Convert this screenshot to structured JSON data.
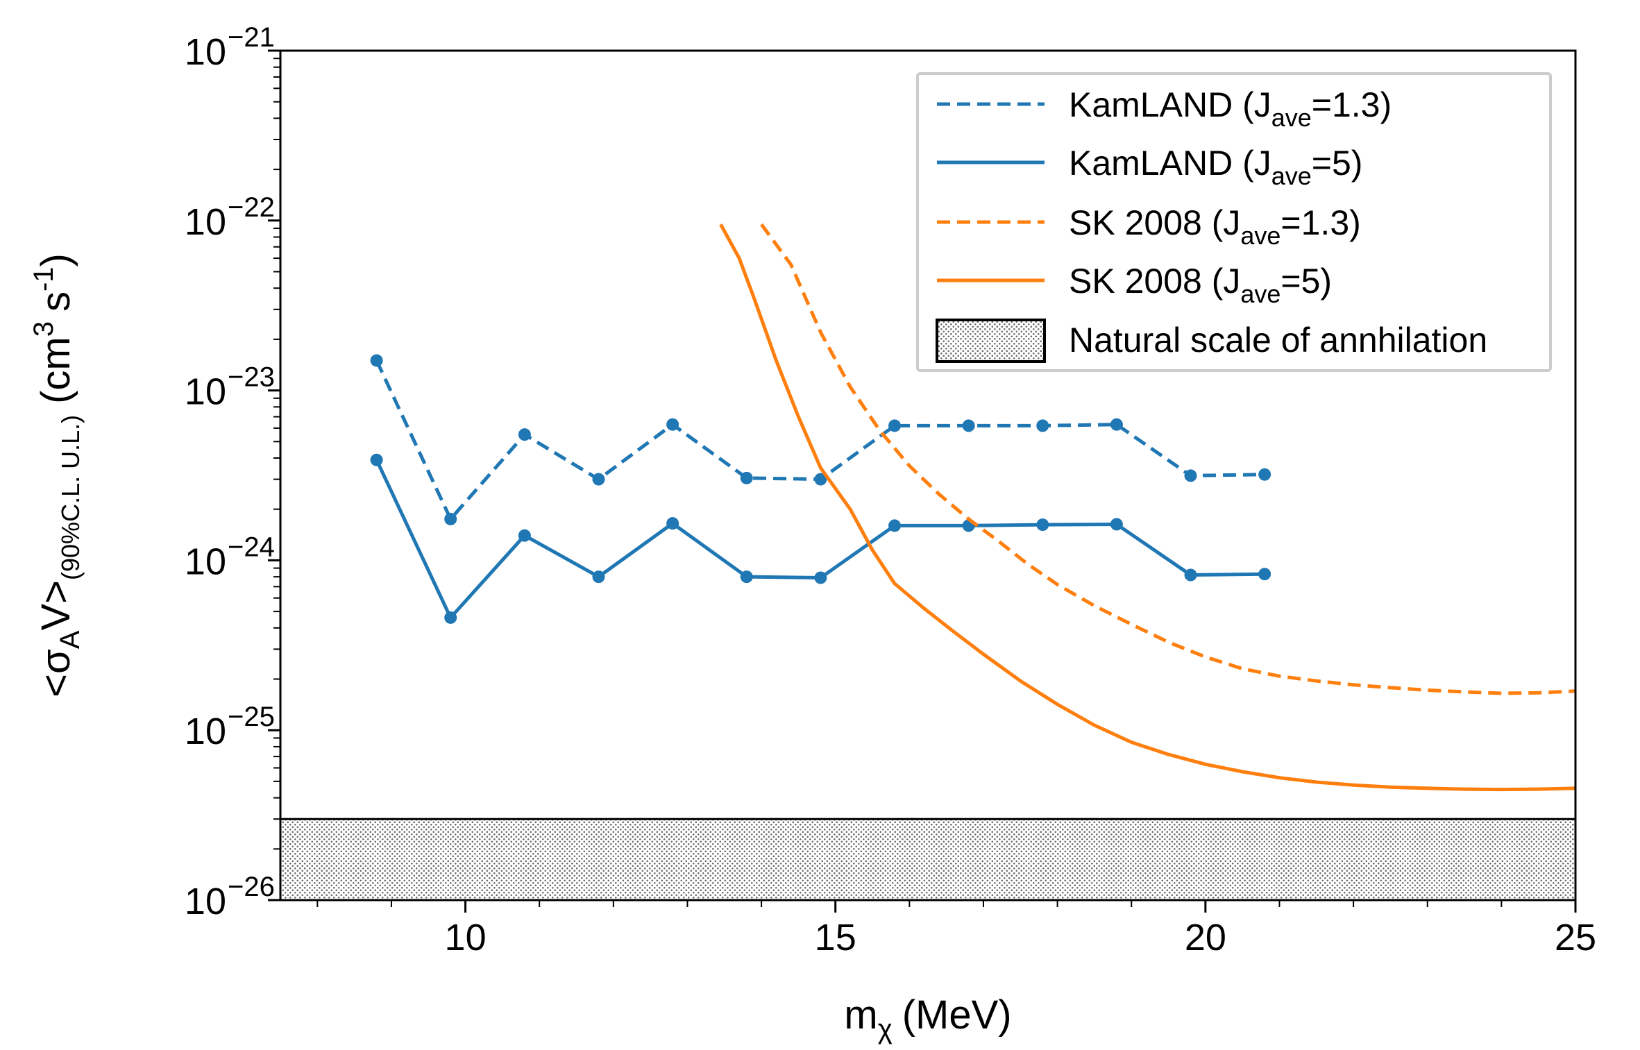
{
  "chart_data": {
    "type": "line",
    "xlabel": "m",
    "xlabel_sub": "χ",
    "xlabel_unit": "(MeV)",
    "ylabel": {
      "open": "<σ",
      "sub_a": "A",
      "v": "V>",
      "sub_cl": "(90%C.L. U.L.)",
      "unit_open": "(cm",
      "unit_exp": "3",
      "unit_s": "s",
      "unit_exp2": "-1",
      "unit_close": ")"
    },
    "xlim": [
      7.5,
      25
    ],
    "ylim_log10": [
      -26,
      -21
    ],
    "y_scale": "log",
    "x_ticks": [
      {
        "value": 10,
        "label": "10"
      },
      {
        "value": 15,
        "label": "15"
      },
      {
        "value": 20,
        "label": "20"
      },
      {
        "value": 25,
        "label": "25"
      }
    ],
    "y_ticks": [
      {
        "exp": -21,
        "base": "10",
        "sup": "−21"
      },
      {
        "exp": -22,
        "base": "10",
        "sup": "−22"
      },
      {
        "exp": -23,
        "base": "10",
        "sup": "−23"
      },
      {
        "exp": -24,
        "base": "10",
        "sup": "−24"
      },
      {
        "exp": -25,
        "base": "10",
        "sup": "−25"
      },
      {
        "exp": -26,
        "base": "10",
        "sup": "−26"
      }
    ],
    "series": [
      {
        "id": "kamland-13",
        "name": "KamLAND (J",
        "name_sub": "ave",
        "name_end": "=1.3)",
        "color": "#1f77b4",
        "dashed": true,
        "markers": true,
        "x": [
          8.8,
          9.8,
          10.8,
          11.8,
          12.8,
          13.8,
          14.8,
          15.8,
          16.8,
          17.8,
          18.8,
          19.8,
          20.8
        ],
        "y": [
          1.5e-23,
          1.75e-24,
          5.5e-24,
          3e-24,
          6.3e-24,
          3.05e-24,
          3e-24,
          6.2e-24,
          6.2e-24,
          6.2e-24,
          6.3e-24,
          3.15e-24,
          3.2e-24
        ]
      },
      {
        "id": "kamland-5",
        "name": "KamLAND (J",
        "name_sub": "ave",
        "name_end": "=5)",
        "color": "#1f77b4",
        "dashed": false,
        "markers": true,
        "x": [
          8.8,
          9.8,
          10.8,
          11.8,
          12.8,
          13.8,
          14.8,
          15.8,
          16.8,
          17.8,
          18.8,
          19.8,
          20.8
        ],
        "y": [
          3.9e-24,
          4.6e-25,
          1.4e-24,
          8e-25,
          1.65e-24,
          8e-25,
          7.9e-25,
          1.6e-24,
          1.6e-24,
          1.62e-24,
          1.63e-24,
          8.2e-25,
          8.3e-25
        ]
      },
      {
        "id": "sk-13",
        "name": "SK 2008 (J",
        "name_sub": "ave",
        "name_end": "=1.3)",
        "color": "#ff7f0e",
        "dashed": true,
        "markers": false,
        "x": [
          14.0,
          14.4,
          14.8,
          15.2,
          15.6,
          16.0,
          16.4,
          16.8,
          17.2,
          17.6,
          18.0,
          18.5,
          19.0,
          19.5,
          20.0,
          20.5,
          21.0,
          21.5,
          22.0,
          22.5,
          23.0,
          23.5,
          24.0,
          24.5,
          25.0
        ],
        "y": [
          9.5e-23,
          5.5e-23,
          2.2e-23,
          1.05e-23,
          5.8e-24,
          3.6e-24,
          2.45e-24,
          1.75e-24,
          1.3e-24,
          9.5e-25,
          7.2e-25,
          5.4e-25,
          4.2e-25,
          3.3e-25,
          2.7e-25,
          2.3e-25,
          2.08e-25,
          1.95e-25,
          1.85e-25,
          1.78e-25,
          1.72e-25,
          1.68e-25,
          1.65e-25,
          1.66e-25,
          1.7e-25
        ]
      },
      {
        "id": "sk-5",
        "name": "SK 2008 (J",
        "name_sub": "ave",
        "name_end": "=5)",
        "color": "#ff7f0e",
        "dashed": false,
        "markers": false,
        "x": [
          13.45,
          13.7,
          13.9,
          14.2,
          14.5,
          14.8,
          15.2,
          15.5,
          15.8,
          16.2,
          16.6,
          17.0,
          17.5,
          18.0,
          18.5,
          19.0,
          19.5,
          20.0,
          20.5,
          21.0,
          21.5,
          22.0,
          22.5,
          23.0,
          23.5,
          24.0,
          24.5,
          25.0
        ],
        "y": [
          9.5e-23,
          6e-23,
          3.5e-23,
          1.5e-23,
          7e-24,
          3.5e-24,
          2e-24,
          1.15e-24,
          7.3e-25,
          5.2e-25,
          3.8e-25,
          2.8e-25,
          1.95e-25,
          1.42e-25,
          1.07e-25,
          8.5e-26,
          7.2e-26,
          6.3e-26,
          5.7e-26,
          5.25e-26,
          4.95e-26,
          4.75e-26,
          4.62e-26,
          4.55e-26,
          4.5e-26,
          4.48e-26,
          4.5e-26,
          4.55e-26
        ]
      }
    ],
    "shaded_band": {
      "label": "Natural scale of annhilation",
      "y_low": 1e-26,
      "y_high": 3e-26,
      "fill": "#d8d8d8",
      "edge": "#000000"
    },
    "legend": {
      "position": "top-right"
    }
  }
}
